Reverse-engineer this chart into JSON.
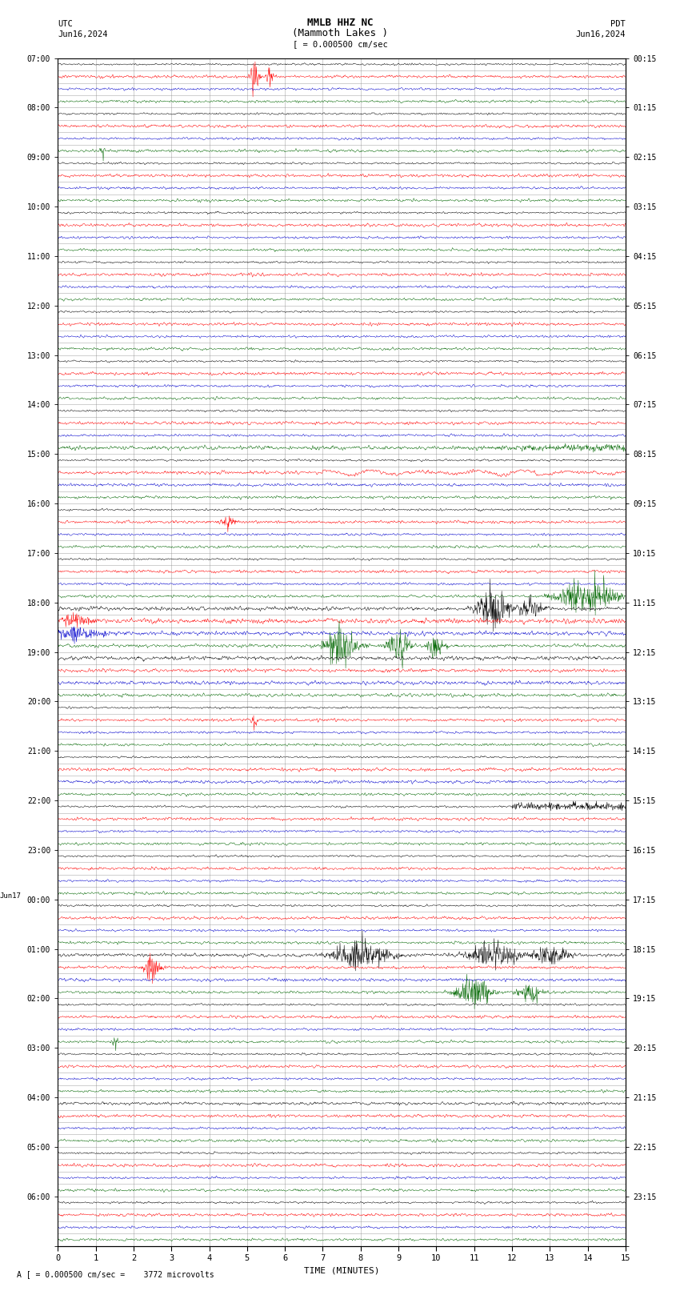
{
  "title_line1": "MMLB HHZ NC",
  "title_line2": "(Mammoth Lakes )",
  "scale_label": "= 0.000500 cm/sec",
  "bottom_label": "A [ = 0.000500 cm/sec =    3772 microvolts",
  "xlabel": "TIME (MINUTES)",
  "left_label_1": "UTC",
  "left_label_2": "Jun16,2024",
  "right_label_1": "PDT",
  "right_label_2": "Jun16,2024",
  "bg_color": "#ffffff",
  "grid_color": "#888888",
  "trace_colors": [
    "#000000",
    "#ff0000",
    "#0000cc",
    "#006600"
  ],
  "hour_labels_left": [
    "07:00",
    "08:00",
    "09:00",
    "10:00",
    "11:00",
    "12:00",
    "13:00",
    "14:00",
    "15:00",
    "16:00",
    "17:00",
    "18:00",
    "19:00",
    "20:00",
    "21:00",
    "22:00",
    "23:00",
    "Jun17\n00:00",
    "01:00",
    "02:00",
    "03:00",
    "04:00",
    "05:00",
    "06:00"
  ],
  "hour_labels_right": [
    "00:15",
    "01:15",
    "02:15",
    "03:15",
    "04:15",
    "05:15",
    "06:15",
    "07:15",
    "08:15",
    "09:15",
    "10:15",
    "11:15",
    "12:15",
    "13:15",
    "14:15",
    "15:15",
    "16:15",
    "17:15",
    "18:15",
    "19:15",
    "20:15",
    "21:15",
    "22:15",
    "23:15"
  ],
  "num_hours": 24,
  "traces_per_hour": 4,
  "x_min": 0,
  "x_max": 15,
  "x_ticks": [
    0,
    1,
    2,
    3,
    4,
    5,
    6,
    7,
    8,
    9,
    10,
    11,
    12,
    13,
    14,
    15
  ]
}
